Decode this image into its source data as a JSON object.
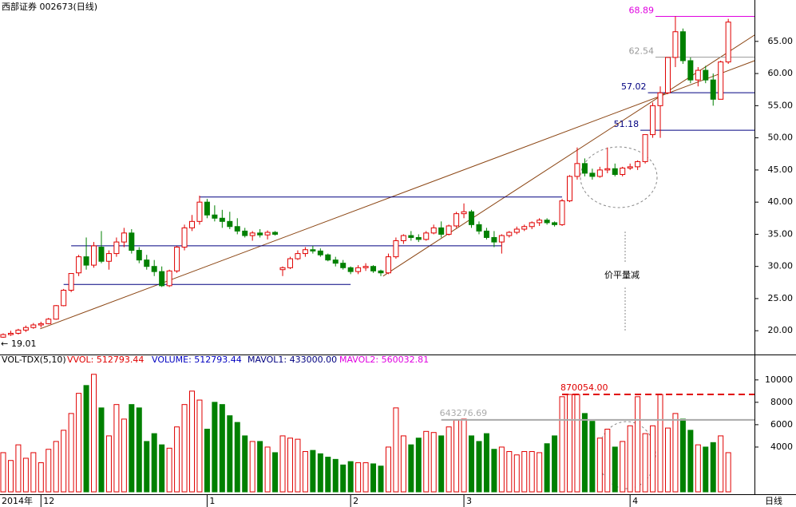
{
  "chart_data": [
    {
      "type": "candlestick",
      "title": "西部证券 002673(日线)",
      "up_color": "#e00000",
      "down_color": "#008000",
      "open": [
        19.0,
        19.4,
        19.6,
        20.1,
        20.5,
        20.9,
        21.1,
        21.8,
        23.9,
        26.3,
        29.0,
        31.5,
        30.2,
        33.0,
        30.8,
        32.0,
        33.8,
        35.2,
        32.5,
        31.0,
        30.0,
        29.2,
        27.0,
        29.3,
        33.0,
        36.0,
        37.0,
        40.0,
        38.0,
        37.5,
        37.0,
        36.2,
        35.5,
        34.8,
        35.2,
        34.9,
        35.3,
        29.5,
        29.8,
        31.2,
        32.0,
        32.6,
        32.4,
        31.8,
        31.0,
        30.5,
        29.8,
        29.2,
        29.8,
        30.0,
        29.3,
        29.0,
        31.5,
        34.0,
        34.8,
        34.5,
        34.2,
        35.2,
        36.0,
        35.0,
        36.3,
        38.2,
        38.5,
        36.5,
        35.5,
        34.5,
        33.8,
        34.8,
        35.3,
        35.8,
        36.2,
        36.8,
        37.2,
        36.8,
        36.5,
        40.2,
        44.0,
        46.0,
        44.5,
        44.0,
        45.0,
        45.2,
        44.3,
        45.3,
        45.5,
        46.3,
        50.5,
        55.0,
        57.0,
        62.5,
        66.5,
        62.0,
        59.0,
        60.5,
        59.0,
        56.0,
        61.8
      ],
      "high": [
        19.6,
        20.0,
        20.3,
        20.8,
        21.2,
        21.4,
        22.0,
        24.0,
        26.5,
        28.9,
        31.8,
        34.5,
        33.8,
        35.5,
        32.5,
        34.5,
        36.0,
        35.8,
        33.0,
        31.8,
        31.0,
        30.0,
        29.5,
        33.2,
        36.5,
        38.0,
        41.0,
        40.5,
        39.5,
        38.8,
        38.5,
        37.5,
        36.0,
        35.5,
        35.8,
        35.6,
        35.5,
        30.0,
        31.5,
        32.5,
        33.0,
        33.2,
        32.8,
        32.0,
        31.5,
        31.0,
        30.0,
        30.2,
        30.5,
        30.2,
        29.5,
        32.0,
        34.5,
        35.0,
        35.5,
        35.0,
        35.5,
        36.5,
        37.0,
        36.5,
        38.5,
        39.8,
        38.8,
        37.0,
        36.0,
        35.5,
        35.0,
        35.5,
        36.2,
        36.5,
        37.0,
        37.5,
        37.5,
        37.0,
        40.5,
        44.2,
        48.5,
        46.8,
        45.2,
        45.5,
        48.5,
        46.0,
        45.5,
        46.0,
        46.5,
        50.5,
        55.5,
        58.0,
        62.5,
        68.9,
        67.0,
        62.5,
        61.0,
        61.2,
        60.0,
        62.0,
        68.5
      ],
      "low": [
        18.9,
        19.2,
        19.4,
        19.8,
        20.3,
        20.5,
        21.0,
        21.7,
        23.8,
        26.0,
        28.5,
        29.5,
        29.8,
        30.5,
        29.5,
        31.5,
        33.0,
        32.0,
        30.5,
        29.5,
        28.5,
        26.8,
        26.8,
        29.0,
        32.5,
        35.5,
        36.5,
        37.5,
        37.0,
        36.0,
        35.8,
        35.0,
        34.5,
        34.0,
        34.5,
        34.2,
        34.8,
        28.5,
        29.6,
        31.0,
        31.5,
        32.0,
        31.5,
        30.8,
        30.0,
        29.5,
        28.8,
        28.8,
        29.3,
        29.0,
        28.5,
        28.8,
        31.2,
        33.5,
        34.0,
        33.8,
        34.0,
        35.0,
        34.5,
        34.8,
        36.0,
        37.5,
        36.0,
        35.0,
        34.2,
        33.0,
        32.0,
        34.5,
        35.0,
        35.5,
        35.8,
        36.3,
        36.5,
        36.2,
        36.3,
        40.0,
        43.5,
        44.0,
        43.5,
        43.8,
        44.5,
        44.0,
        44.0,
        45.0,
        45.0,
        46.0,
        50.0,
        50.0,
        56.8,
        61.0,
        61.5,
        58.5,
        58.0,
        58.5,
        55.0,
        56.0,
        61.5
      ],
      "close": [
        19.4,
        19.6,
        20.1,
        20.5,
        20.9,
        21.1,
        21.8,
        23.9,
        26.3,
        28.9,
        31.5,
        30.2,
        33.2,
        30.8,
        32.0,
        33.8,
        35.2,
        32.5,
        31.0,
        30.0,
        29.2,
        27.0,
        29.3,
        33.0,
        36.0,
        37.0,
        40.0,
        38.0,
        37.5,
        37.0,
        36.2,
        35.5,
        34.8,
        35.2,
        34.9,
        35.3,
        35.0,
        29.8,
        31.2,
        32.0,
        32.6,
        32.4,
        31.8,
        31.0,
        30.5,
        29.8,
        29.2,
        29.8,
        30.0,
        29.3,
        29.0,
        31.5,
        34.0,
        34.8,
        34.5,
        34.2,
        35.2,
        36.0,
        35.0,
        36.3,
        38.2,
        38.5,
        36.5,
        35.5,
        34.5,
        33.8,
        34.8,
        35.3,
        35.8,
        36.2,
        36.8,
        37.2,
        36.8,
        36.5,
        40.2,
        44.0,
        46.0,
        44.5,
        44.0,
        45.0,
        45.2,
        44.3,
        45.3,
        45.5,
        46.3,
        50.5,
        55.0,
        57.0,
        62.5,
        66.5,
        62.0,
        59.0,
        60.5,
        59.0,
        56.0,
        61.8,
        68.0
      ],
      "ylim": [
        16.8,
        69.2
      ],
      "yticks": [
        {
          "value": 20,
          "label": "20.00"
        },
        {
          "value": 25,
          "label": "25.00"
        },
        {
          "value": 30,
          "label": "30.00"
        },
        {
          "value": 35,
          "label": "35.00"
        },
        {
          "value": 40,
          "label": "40.00"
        },
        {
          "value": 45,
          "label": "45.00"
        },
        {
          "value": 50,
          "label": "50.00"
        },
        {
          "value": 55,
          "label": "55.00"
        },
        {
          "value": 60,
          "label": "60.00"
        },
        {
          "value": 65,
          "label": "65.00"
        }
      ],
      "x_labels": [
        {
          "index": 5,
          "label": "12"
        },
        {
          "index": 27,
          "label": "1"
        },
        {
          "index": 46,
          "label": "2"
        },
        {
          "index": 61,
          "label": "3"
        },
        {
          "index": 83,
          "label": "4"
        }
      ],
      "x_start_label": "2014年",
      "x_end_label": "日线",
      "marked_prices": [
        {
          "value": 68.89,
          "from": 87,
          "color": "#e000e0"
        },
        {
          "value": 62.54,
          "from": 87,
          "color": "#999999"
        },
        {
          "value": 57.02,
          "from": 86,
          "color": "#000080"
        },
        {
          "value": 51.18,
          "from": 85,
          "color": "#000080"
        }
      ],
      "low_mark": 19.01,
      "low_arrow": "←",
      "lines": [
        {
          "value": 40.8,
          "from": 26,
          "to": 74
        },
        {
          "value": 33.2,
          "from": 9,
          "to": 66
        },
        {
          "value": 27.2,
          "from": 8,
          "to": 46
        }
      ],
      "trend_lines": [
        {
          "x": [
            4.9,
            99.5
          ],
          "y": [
            20.3,
            62
          ]
        },
        {
          "x": [
            50.3,
            99.5
          ],
          "y": [
            28.5,
            66
          ]
        }
      ],
      "annotation": "价平量减"
    },
    {
      "type": "bar",
      "title": "VOL-TDX(5,10)",
      "legend": [
        "VVOL: 512793.44",
        "VOLUME: 512793.44",
        "MAVOL1: 433000.00",
        "MAVOL2: 560032.81"
      ],
      "values": [
        3500,
        2800,
        4200,
        3000,
        3500,
        2600,
        3800,
        4500,
        5500,
        7000,
        8800,
        9500,
        10500,
        7500,
        5000,
        7800,
        6500,
        7800,
        7500,
        4500,
        5200,
        4200,
        3900,
        5800,
        7800,
        9000,
        8200,
        5600,
        8000,
        7800,
        6800,
        6200,
        5000,
        4500,
        4500,
        4000,
        3500,
        5000,
        4800,
        4700,
        3600,
        3700,
        3400,
        3100,
        2900,
        2400,
        2700,
        2600,
        2600,
        2500,
        2300,
        4000,
        7500,
        5000,
        4200,
        4800,
        5400,
        5300,
        5000,
        5800,
        6400,
        6500,
        5000,
        4500,
        5200,
        3800,
        4000,
        3600,
        3300,
        3600,
        3600,
        3500,
        4300,
        5000,
        8500,
        8700,
        8700,
        7000,
        6300,
        4800,
        5600,
        4000,
        4500,
        5900,
        8500,
        5200,
        5900,
        8700,
        5700,
        7000,
        6500,
        5500,
        4200,
        4000,
        4400,
        5000,
        3500
      ],
      "ylim": [
        0,
        11700
      ],
      "yticks": [
        4000,
        6000,
        8000,
        10000
      ],
      "marks": [
        {
          "value": 8700.54,
          "label": "870054.00",
          "from": 74,
          "color": "#e00000"
        },
        {
          "value": 6432.77,
          "label": "643276.69",
          "from": 58,
          "color": "#aaaaaa"
        }
      ]
    }
  ]
}
